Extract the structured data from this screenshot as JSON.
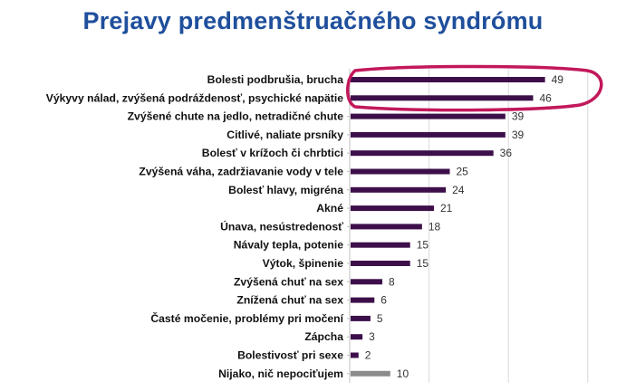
{
  "title": "Prejavy predmenštruačného syndrómu",
  "colors": {
    "title": "#1f4f9c",
    "bar": "#3d0f4a",
    "bar_last": "#8c8c8c",
    "highlight_ellipse": "#c2185b",
    "grid": "#d9d9d9"
  },
  "chart_data": {
    "type": "bar",
    "orientation": "horizontal",
    "title": "Prejavy predmenštruačného syndrómu",
    "xlabel": "",
    "ylabel": "",
    "xlim": [
      0,
      60
    ],
    "grid": true,
    "categories": [
      "Bolesti podbrušia, brucha",
      "Výkyvy nálad, zvýšená podráždenosť, psychické napätie",
      "Zvýšené chute na jedlo, netradičné chute",
      "Citlivé, naliate prsníky",
      "Bolesť v krížoch či chrbtici",
      "Zvýšená váha, zadržiavanie vody v tele",
      "Bolesť hlavy, migréna",
      "Akné",
      "Únava, nesústredenosť",
      "Návaly tepla, potenie",
      "Výtok, špinenie",
      "Zvýšená chuť na sex",
      "Znížená chuť na sex",
      "Časté močenie, problémy pri močení",
      "Zápcha",
      "Bolestivosť pri sexe",
      "Nijako, nič nepociťujem"
    ],
    "values": [
      49,
      46,
      39,
      39,
      36,
      25,
      24,
      21,
      18,
      15,
      15,
      8,
      6,
      5,
      3,
      2,
      10
    ],
    "highlighted": [
      "Bolesti podbrušia, brucha",
      "Výkyvy nálad, zvýšená podráždenosť, psychické napätie"
    ]
  }
}
